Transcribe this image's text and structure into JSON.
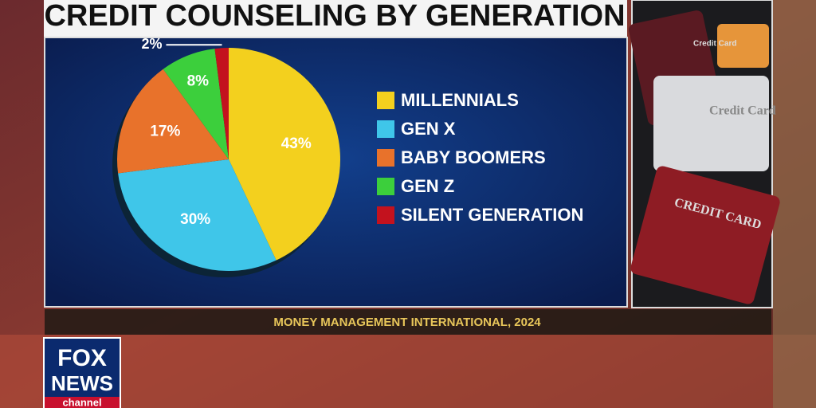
{
  "chart_data": {
    "type": "pie",
    "title": "CREDIT COUNSELING BY GENERATION",
    "categories": [
      "MILLENNIALS",
      "GEN X",
      "BABY BOOMERS",
      "GEN Z",
      "SILENT GENERATION"
    ],
    "values": [
      43,
      30,
      17,
      8,
      2
    ],
    "value_labels": [
      "43%",
      "30%",
      "17%",
      "8%",
      "2%"
    ],
    "colors": [
      "#f3d01e",
      "#3fc6e9",
      "#e8722b",
      "#3ccf3c",
      "#c3121e"
    ],
    "source": "MONEY MANAGEMENT INTERNATIONAL, 2024"
  },
  "photo": {
    "card_texts": [
      "Credit Card",
      "Credit Card",
      "CREDIT CARD"
    ]
  },
  "logo": {
    "line1": "FOX",
    "line2": "NEWS",
    "line3": "channel"
  }
}
